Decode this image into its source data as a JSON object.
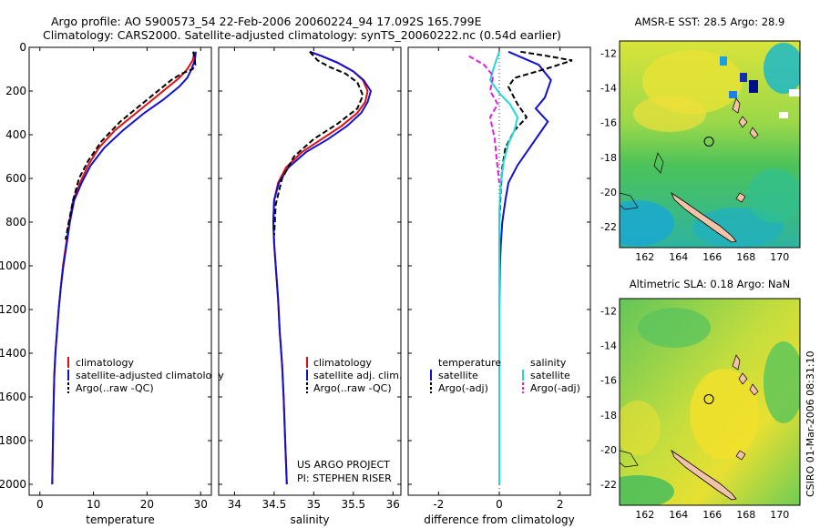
{
  "title_line1": "Argo profile: AO 5900573_54 22-Feb-2006 20060224_94 17.092S 165.799E",
  "title_line2": "Climatology: CARS2000. Satellite-adjusted climatology: synTS_20060222.nc (0.54d earlier)",
  "credit": "CSIRO 01-Mar-2006 08:31:10",
  "project_line1": "US ARGO PROJECT",
  "project_line2": "PI: STEPHEN RISER",
  "colors": {
    "climatology": "#e01010",
    "satellite": "#1010d0",
    "argo": "#000000",
    "sal_satellite": "#20d8d8",
    "sal_argo": "#e020e0",
    "map_sea_warm": "#f2e52c",
    "map_sea_mid": "#7fd04a",
    "map_sea_cool": "#2fb46a",
    "map_sea_cold": "#19a7d6",
    "land": "#f2c3a8"
  },
  "chart_data": [
    {
      "type": "line",
      "xlabel": "temperature",
      "ylabel": "",
      "xlim": [
        -2,
        32
      ],
      "ylim": [
        2050,
        0
      ],
      "xticks": [
        0,
        10,
        20,
        30
      ],
      "yticks": [
        0,
        200,
        400,
        600,
        800,
        1000,
        1200,
        1400,
        1600,
        1800,
        2000
      ],
      "legend": [
        "climatology",
        "satellite-adjusted climatology",
        "Argo(..raw -QC)"
      ],
      "series": [
        {
          "name": "climatology",
          "style": "solid",
          "color": "#e01010",
          "x": [
            28.8,
            28.7,
            28.5,
            27.5,
            26,
            24,
            21,
            18,
            14,
            11,
            9,
            7.5,
            6.2,
            5.5,
            4.9,
            4.3,
            3.9,
            3.5,
            3.2,
            2.9,
            2.7,
            2.5,
            2.3
          ],
          "y": [
            20,
            40,
            60,
            100,
            140,
            180,
            240,
            300,
            380,
            460,
            540,
            620,
            700,
            800,
            900,
            1000,
            1100,
            1200,
            1300,
            1400,
            1500,
            1700,
            2000
          ]
        },
        {
          "name": "satellite-adjusted climatology",
          "style": "solid",
          "color": "#1010d0",
          "x": [
            29.1,
            29.0,
            28.9,
            28.3,
            27.5,
            26,
            23,
            19.5,
            15.5,
            12,
            9.5,
            7.8,
            6.4,
            5.6,
            5.0,
            4.4,
            3.9,
            3.5,
            3.2,
            2.9,
            2.7,
            2.5,
            2.3
          ],
          "y": [
            20,
            40,
            60,
            100,
            140,
            180,
            240,
            300,
            380,
            460,
            540,
            620,
            700,
            800,
            900,
            1000,
            1100,
            1200,
            1300,
            1400,
            1500,
            1700,
            2000
          ]
        },
        {
          "name": "Argo(..raw -QC)",
          "style": "dashed",
          "color": "#000000",
          "x": [
            28.6,
            28.8,
            28.9,
            29.0,
            28.5,
            26.5,
            24.5,
            22,
            19,
            15,
            11.5,
            9,
            7.3,
            6.2,
            5.4,
            4.8
          ],
          "y": [
            20,
            40,
            60,
            80,
            100,
            120,
            150,
            200,
            260,
            340,
            430,
            520,
            600,
            700,
            800,
            880
          ]
        }
      ]
    },
    {
      "type": "line",
      "xlabel": "salinity",
      "ylabel": "",
      "xlim": [
        33.8,
        36.1
      ],
      "ylim": [
        2050,
        0
      ],
      "xticks": [
        34,
        34.5,
        35,
        35.5,
        36
      ],
      "legend": [
        "climatology",
        "satellite adj. clim.",
        "Argo(..raw -QC)"
      ],
      "series": [
        {
          "name": "climatology",
          "style": "solid",
          "color": "#e01010",
          "x": [
            34.95,
            35.1,
            35.3,
            35.5,
            35.62,
            35.68,
            35.65,
            35.55,
            35.35,
            35.1,
            34.85,
            34.65,
            34.55,
            34.5,
            34.49,
            34.5,
            34.52,
            34.55,
            34.57,
            34.6,
            34.62,
            34.64,
            34.66
          ],
          "y": [
            20,
            40,
            70,
            110,
            150,
            200,
            250,
            300,
            360,
            420,
            480,
            550,
            620,
            700,
            800,
            900,
            1000,
            1150,
            1300,
            1450,
            1600,
            1800,
            2000
          ]
        },
        {
          "name": "satellite adj. clim.",
          "style": "solid",
          "color": "#1010d0",
          "x": [
            34.95,
            35.1,
            35.3,
            35.5,
            35.63,
            35.72,
            35.68,
            35.6,
            35.42,
            35.18,
            34.9,
            34.68,
            34.56,
            34.5,
            34.49,
            34.5,
            34.52,
            34.55,
            34.57,
            34.6,
            34.62,
            34.64,
            34.66
          ],
          "y": [
            20,
            40,
            70,
            110,
            150,
            200,
            250,
            300,
            360,
            420,
            480,
            550,
            620,
            700,
            800,
            900,
            1000,
            1150,
            1300,
            1450,
            1600,
            1800,
            2000
          ]
        },
        {
          "name": "Argo(..raw -QC)",
          "style": "dashed",
          "color": "#000000",
          "x": [
            34.95,
            35.0,
            35.05,
            35.2,
            35.4,
            35.55,
            35.62,
            35.55,
            35.3,
            35.0,
            34.75,
            34.6,
            34.52,
            34.5
          ],
          "y": [
            20,
            40,
            60,
            90,
            120,
            160,
            220,
            280,
            350,
            420,
            500,
            600,
            720,
            860
          ]
        }
      ]
    },
    {
      "type": "line",
      "xlabel": "difference from climatology",
      "ylabel": "",
      "xlim": [
        -3,
        3
      ],
      "ylim": [
        2050,
        0
      ],
      "xticks": [
        -2,
        0,
        2
      ],
      "legend_title_left": "temperature",
      "legend_title_right": "salinity",
      "legend": [
        "satellite",
        "Argo(-adj)",
        "satellite",
        "Argo(-adj)"
      ],
      "series": [
        {
          "name": "temperature satellite",
          "style": "solid",
          "color": "#1010d0",
          "x": [
            0.3,
            1.3,
            1.7,
            1.5,
            1.2,
            1.6,
            1.3,
            1.0,
            0.6,
            0.3,
            0.2,
            0.1,
            0.05,
            0.02,
            0.0,
            0.0,
            0.0
          ],
          "y": [
            20,
            80,
            150,
            230,
            280,
            340,
            400,
            460,
            540,
            620,
            700,
            800,
            900,
            1000,
            1200,
            1600,
            2000
          ]
        },
        {
          "name": "temperature Argo(-adj)",
          "style": "dashed",
          "color": "#000000",
          "x": [
            0.7,
            1.6,
            2.4,
            1.5,
            0.5,
            0.3,
            0.6,
            0.9,
            0.5,
            0.2,
            0.1,
            0.05,
            0.0
          ],
          "y": [
            20,
            40,
            60,
            100,
            140,
            180,
            260,
            320,
            380,
            460,
            550,
            650,
            800
          ]
        },
        {
          "name": "salinity satellite",
          "style": "solid",
          "color": "#20d8d8",
          "x": [
            0.0,
            -0.15,
            -0.3,
            0.0,
            0.35,
            0.6,
            0.5,
            0.3,
            0.15,
            0.05,
            0.0,
            0.0,
            0.0
          ],
          "y": [
            20,
            80,
            150,
            210,
            260,
            320,
            380,
            440,
            520,
            620,
            750,
            1200,
            2000
          ]
        },
        {
          "name": "salinity Argo(-adj)",
          "style": "dashed",
          "color": "#e020e0",
          "x": [
            -1.0,
            -0.5,
            -0.2,
            -0.3,
            -0.05,
            -0.3,
            -0.15,
            -0.08,
            0.0
          ],
          "y": [
            40,
            80,
            130,
            200,
            260,
            320,
            420,
            520,
            620
          ]
        }
      ]
    },
    {
      "type": "heatmap",
      "title": "AMSR-E SST: 28.5  Argo: 28.9",
      "xticks": [
        162,
        164,
        166,
        168,
        170
      ],
      "yticks": [
        -12,
        -14,
        -16,
        -18,
        -20,
        -22
      ],
      "xlim": [
        160.5,
        171.2
      ],
      "ylim": [
        -23.2,
        -11.3
      ],
      "argo_position": {
        "lon": 165.8,
        "lat": -17.09
      }
    },
    {
      "type": "heatmap",
      "title": "Altimetric SLA: 0.18  Argo: NaN",
      "xticks": [
        162,
        164,
        166,
        168,
        170
      ],
      "yticks": [
        -12,
        -14,
        -16,
        -18,
        -20,
        -22
      ],
      "xlim": [
        160.5,
        171.2
      ],
      "ylim": [
        -23.2,
        -11.3
      ],
      "argo_position": {
        "lon": 165.8,
        "lat": -17.09
      }
    }
  ]
}
